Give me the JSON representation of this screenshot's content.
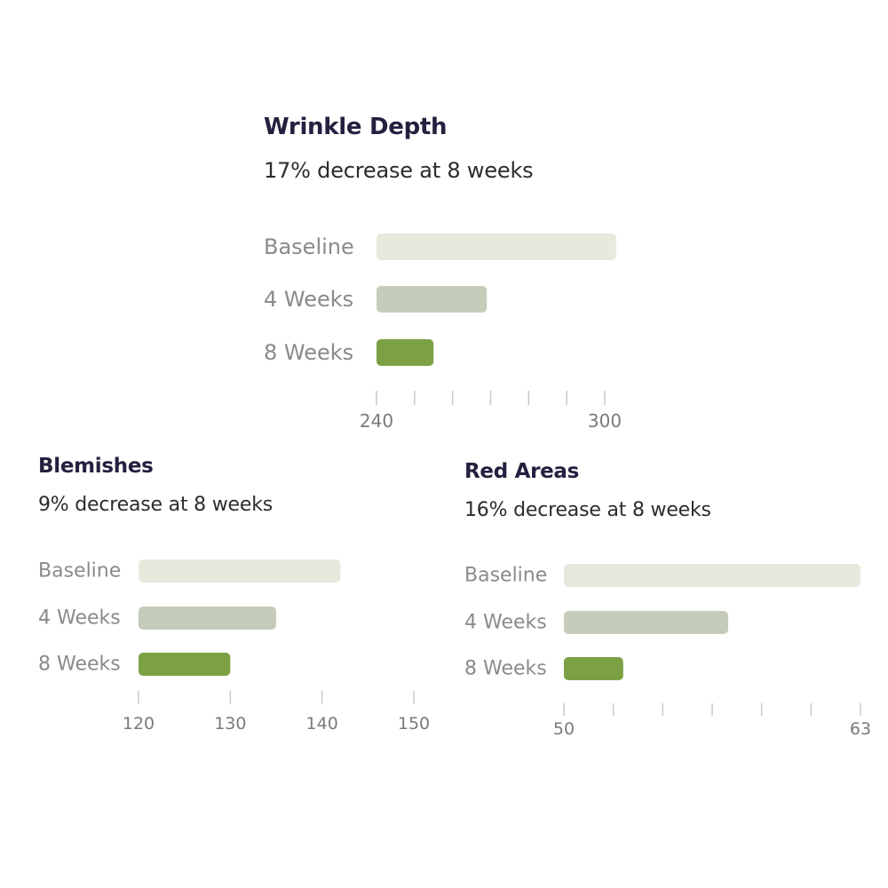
{
  "colors": {
    "baseline": "#e7e9dc",
    "week4": "#c5ccba",
    "week8": "#7ba144",
    "title": "#23213f",
    "subtitle": "#2c2c2c",
    "label": "#8a8a8a",
    "tick": "#c8c8c8",
    "tick_label": "#7a7a7a"
  },
  "chart_data": [
    {
      "type": "bar",
      "orientation": "horizontal",
      "title": "Wrinkle Depth",
      "subtitle": "17% decrease at 8 weeks",
      "categories": [
        "Baseline",
        "4 Weeks",
        "8 Weeks"
      ],
      "values": [
        303,
        269,
        255
      ],
      "xlim": [
        240,
        300
      ],
      "x_tick_labels": [
        "240",
        "300"
      ],
      "grid": false
    },
    {
      "type": "bar",
      "orientation": "horizontal",
      "title": "Blemishes",
      "subtitle": "9% decrease at 8 weeks",
      "categories": [
        "Baseline",
        "4 Weeks",
        "8 Weeks"
      ],
      "values": [
        142,
        135,
        130
      ],
      "xlim": [
        120,
        150
      ],
      "x_tick_labels": [
        "120",
        "130",
        "140",
        "150"
      ],
      "grid": false
    },
    {
      "type": "bar",
      "orientation": "horizontal",
      "title": "Red Areas",
      "subtitle": "16% decrease at 8 weeks",
      "categories": [
        "Baseline",
        "4 Weeks",
        "8 Weeks"
      ],
      "values": [
        63,
        57.2,
        52.6
      ],
      "xlim": [
        50,
        63
      ],
      "x_tick_labels": [
        "50",
        "63"
      ],
      "grid": false
    }
  ]
}
